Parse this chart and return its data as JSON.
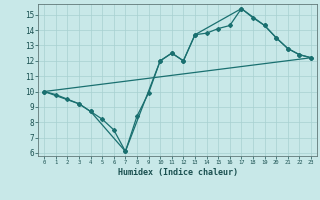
{
  "title": "",
  "xlabel": "Humidex (Indice chaleur)",
  "ylabel": "",
  "bg_color": "#c8e8e8",
  "line_color": "#1a7070",
  "grid_color": "#a8d0d0",
  "xlim": [
    -0.5,
    23.5
  ],
  "ylim": [
    5.8,
    15.7
  ],
  "yticks": [
    6,
    7,
    8,
    9,
    10,
    11,
    12,
    13,
    14,
    15
  ],
  "xticks": [
    0,
    1,
    2,
    3,
    4,
    5,
    6,
    7,
    8,
    9,
    10,
    11,
    12,
    13,
    14,
    15,
    16,
    17,
    18,
    19,
    20,
    21,
    22,
    23
  ],
  "line1_x": [
    0,
    1,
    2,
    3,
    4,
    5,
    6,
    7,
    8,
    9,
    10,
    11,
    12,
    13,
    14,
    15,
    16,
    17,
    18,
    19,
    20,
    21,
    22,
    23
  ],
  "line1_y": [
    10.0,
    9.8,
    9.5,
    9.2,
    8.7,
    8.2,
    7.5,
    6.1,
    8.4,
    9.9,
    12.0,
    12.5,
    12.0,
    13.7,
    13.8,
    14.1,
    14.3,
    15.4,
    14.8,
    14.3,
    13.5,
    12.8,
    12.4,
    12.2
  ],
  "line2_x": [
    0,
    3,
    4,
    7,
    10,
    11,
    12,
    13,
    17,
    19,
    20,
    21,
    22,
    23
  ],
  "line2_y": [
    10.0,
    9.2,
    8.7,
    6.1,
    12.0,
    12.5,
    12.0,
    13.7,
    15.4,
    14.3,
    13.5,
    12.8,
    12.4,
    12.2
  ],
  "line3_x": [
    0,
    23
  ],
  "line3_y": [
    10.0,
    12.2
  ]
}
